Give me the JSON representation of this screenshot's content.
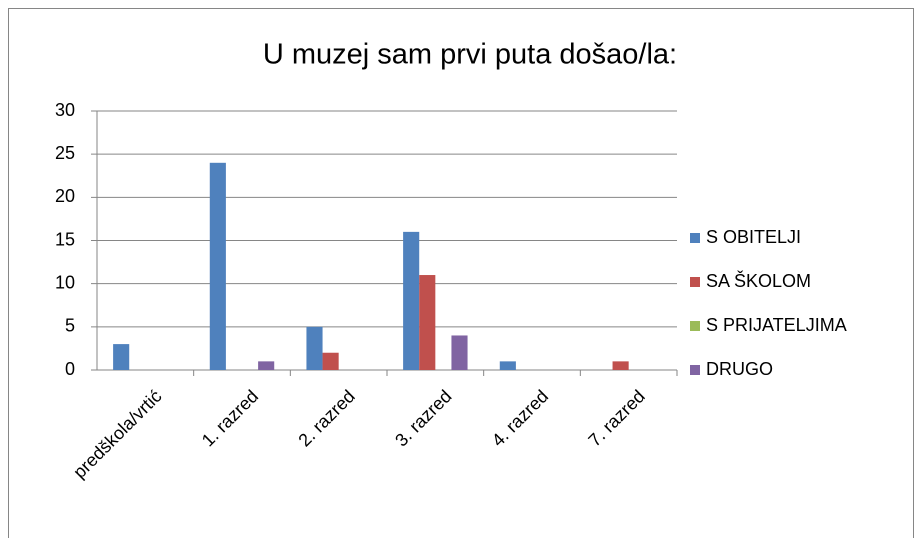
{
  "chart_data": {
    "type": "bar",
    "title": "U muzej sam prvi puta došao/la:",
    "categories": [
      "predškola/vrtić",
      "1. razred",
      "2. razred",
      "3. razred",
      "4. razred",
      "7. razred"
    ],
    "series": [
      {
        "name": "S OBITELJI",
        "color": "#4f81bd",
        "values": [
          3,
          24,
          5,
          16,
          1,
          0
        ]
      },
      {
        "name": "SA ŠKOLOM",
        "color": "#c0504d",
        "values": [
          0,
          0,
          2,
          11,
          0,
          1
        ]
      },
      {
        "name": "S PRIJATELJIMA",
        "color": "#9bbb59",
        "values": [
          0,
          0,
          0,
          0,
          0,
          0
        ]
      },
      {
        "name": "DRUGO",
        "color": "#8064a2",
        "values": [
          0,
          1,
          0,
          4,
          0,
          0
        ]
      }
    ],
    "ylim": [
      0,
      30
    ],
    "yticks": [
      0,
      5,
      10,
      15,
      20,
      25,
      30
    ],
    "grid": true,
    "legend": "right"
  }
}
